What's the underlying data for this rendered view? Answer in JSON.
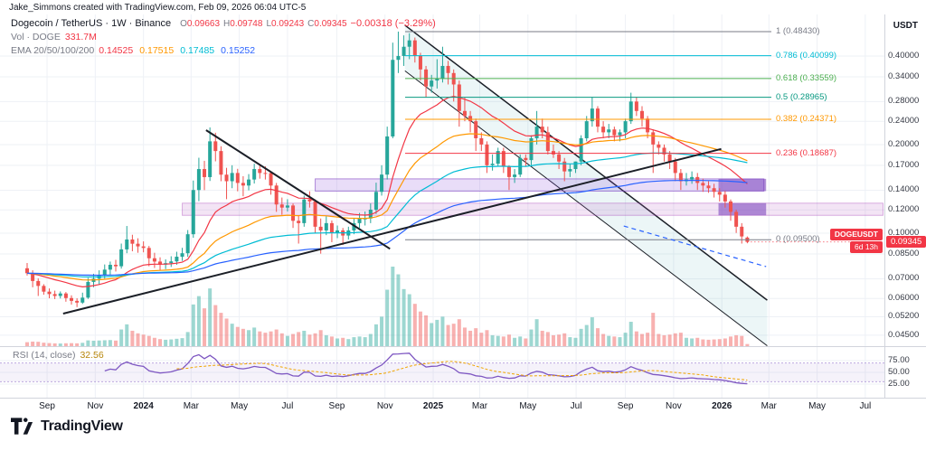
{
  "attribution": "Jake_Simmons created with TradingView.com, Feb 09, 2026 06:04 UTC-5",
  "header": {
    "symbol_line": {
      "title": "Dogecoin / TetherUS · 1W · Binance",
      "ohlc": [
        {
          "k": "O",
          "v": "0.09663"
        },
        {
          "k": "H",
          "v": "0.09748"
        },
        {
          "k": "L",
          "v": "0.09243"
        },
        {
          "k": "C",
          "v": "0.09345"
        }
      ],
      "change": "−0.00318 (−3.29%)",
      "change_color": "#f23645"
    },
    "volume_line": {
      "label": "Vol · DOGE",
      "value": "331.7M",
      "value_color": "#f23645"
    },
    "ema_line": {
      "label": "EMA 20/50/100/200",
      "values": [
        {
          "v": "0.14525",
          "c": "#f23645"
        },
        {
          "v": "0.17515",
          "c": "#ff9800"
        },
        {
          "v": "0.17485",
          "c": "#00bcd4"
        },
        {
          "v": "0.15252",
          "c": "#2962ff"
        }
      ]
    }
  },
  "price_label": {
    "symbol": "DOGEUSDT",
    "countdown": "6d 13h",
    "price": "0.09345",
    "color": "#f23645"
  },
  "footer": {
    "brand": "TradingView"
  },
  "chart_data": {
    "type": "candlestick",
    "symbol": "DOGEUSDT",
    "exchange": "Binance",
    "interval": "1W",
    "quote": "USDT",
    "price_scale": "log",
    "colors": {
      "up": "#26a69a",
      "down": "#ef5350",
      "grid": "#eef1f6",
      "axis_line": "#d1d4dc"
    },
    "y_ticks": [
      "0.40000",
      "0.34000",
      "0.28000",
      "0.24000",
      "0.20000",
      "0.17000",
      "0.14000",
      "0.12000",
      "0.10000",
      "0.08500",
      "0.07000",
      "0.06000",
      "0.05200",
      "0.04500"
    ],
    "x_labels": [
      {
        "t": "Sep",
        "i": 3.6
      },
      {
        "t": "Nov",
        "i": 12.3
      },
      {
        "t": "2024",
        "i": 21.0,
        "b": 1
      },
      {
        "t": "Mar",
        "i": 29.6
      },
      {
        "t": "May",
        "i": 38.3
      },
      {
        "t": "Jul",
        "i": 47.0
      },
      {
        "t": "Sep",
        "i": 55.9
      },
      {
        "t": "Nov",
        "i": 64.6
      },
      {
        "t": "2025",
        "i": 73.3,
        "b": 1
      },
      {
        "t": "Mar",
        "i": 81.7
      },
      {
        "t": "May",
        "i": 90.4
      },
      {
        "t": "Jul",
        "i": 99.1
      },
      {
        "t": "Sep",
        "i": 108.0
      },
      {
        "t": "Nov",
        "i": 116.7
      },
      {
        "t": "2026",
        "i": 125.4,
        "b": 1
      },
      {
        "t": "Mar",
        "i": 133.9
      },
      {
        "t": "May",
        "i": 142.6
      },
      {
        "t": "Jul",
        "i": 151.3
      }
    ],
    "volume_unit": "M",
    "candles": [
      [
        0.076,
        0.0792,
        0.0718,
        0.0731,
        620
      ],
      [
        0.0731,
        0.0748,
        0.0655,
        0.0688,
        710
      ],
      [
        0.0688,
        0.0702,
        0.0612,
        0.0662,
        680
      ],
      [
        0.0662,
        0.0671,
        0.0618,
        0.0633,
        540
      ],
      [
        0.0633,
        0.0649,
        0.0601,
        0.0621,
        480
      ],
      [
        0.0621,
        0.0638,
        0.0597,
        0.0612,
        430
      ],
      [
        0.0612,
        0.0634,
        0.06,
        0.0624,
        410
      ],
      [
        0.0624,
        0.0631,
        0.0585,
        0.0602,
        450
      ],
      [
        0.0602,
        0.0615,
        0.0572,
        0.0589,
        470
      ],
      [
        0.0589,
        0.0601,
        0.0561,
        0.0581,
        440
      ],
      [
        0.0581,
        0.0628,
        0.0575,
        0.0604,
        520
      ],
      [
        0.0604,
        0.0705,
        0.0598,
        0.0683,
        900
      ],
      [
        0.0683,
        0.0728,
        0.0655,
        0.0701,
        850
      ],
      [
        0.0701,
        0.0748,
        0.0668,
        0.0722,
        880
      ],
      [
        0.0722,
        0.0783,
        0.0701,
        0.0752,
        920
      ],
      [
        0.0752,
        0.0801,
        0.0722,
        0.0781,
        950
      ],
      [
        0.0781,
        0.0812,
        0.0741,
        0.0772,
        870
      ],
      [
        0.0772,
        0.0922,
        0.0758,
        0.0881,
        2600
      ],
      [
        0.0881,
        0.1058,
        0.0855,
        0.0952,
        3400
      ],
      [
        0.0952,
        0.0988,
        0.0868,
        0.0921,
        2400
      ],
      [
        0.0921,
        0.0961,
        0.0858,
        0.0902,
        2000
      ],
      [
        0.0902,
        0.0938,
        0.0861,
        0.0891,
        1800
      ],
      [
        0.0891,
        0.0905,
        0.0772,
        0.0822,
        1600
      ],
      [
        0.0822,
        0.0858,
        0.0762,
        0.0801,
        1300
      ],
      [
        0.0801,
        0.0828,
        0.0748,
        0.0782,
        1100
      ],
      [
        0.0782,
        0.0815,
        0.0755,
        0.0791,
        1000
      ],
      [
        0.0791,
        0.0835,
        0.0768,
        0.0802,
        1050
      ],
      [
        0.0802,
        0.0865,
        0.0781,
        0.0832,
        1150
      ],
      [
        0.0832,
        0.0892,
        0.0805,
        0.0855,
        1250
      ],
      [
        0.0855,
        0.1025,
        0.0831,
        0.0992,
        2200
      ],
      [
        0.0992,
        0.151,
        0.0965,
        0.1402,
        6500
      ],
      [
        0.1402,
        0.1805,
        0.1285,
        0.1652,
        7800
      ],
      [
        0.1652,
        0.1762,
        0.1401,
        0.1551,
        5900
      ],
      [
        0.1551,
        0.2288,
        0.1505,
        0.2052,
        9000
      ],
      [
        0.2052,
        0.2195,
        0.1755,
        0.1902,
        6400
      ],
      [
        0.1902,
        0.1975,
        0.1502,
        0.1581,
        5200
      ],
      [
        0.1581,
        0.1668,
        0.1305,
        0.1502,
        4300
      ],
      [
        0.1502,
        0.1702,
        0.1422,
        0.1602,
        3500
      ],
      [
        0.1602,
        0.1655,
        0.1388,
        0.1482,
        3000
      ],
      [
        0.1482,
        0.1562,
        0.1335,
        0.1452,
        2700
      ],
      [
        0.1452,
        0.1588,
        0.1398,
        0.1522,
        2500
      ],
      [
        0.1522,
        0.1722,
        0.1475,
        0.1652,
        2900
      ],
      [
        0.1652,
        0.1708,
        0.1532,
        0.1602,
        2300
      ],
      [
        0.1602,
        0.1688,
        0.1522,
        0.1601,
        2100
      ],
      [
        0.1601,
        0.1622,
        0.1352,
        0.1452,
        2300
      ],
      [
        0.1452,
        0.1482,
        0.1182,
        0.1252,
        2600
      ],
      [
        0.1252,
        0.1322,
        0.1155,
        0.1222,
        2000
      ],
      [
        0.1222,
        0.1305,
        0.1185,
        0.1242,
        1600
      ],
      [
        0.1242,
        0.1262,
        0.1042,
        0.1102,
        1900
      ],
      [
        0.1102,
        0.1152,
        0.0922,
        0.1082,
        2200
      ],
      [
        0.1082,
        0.1342,
        0.1052,
        0.1302,
        2400
      ],
      [
        0.1302,
        0.1388,
        0.1222,
        0.1282,
        1800
      ],
      [
        0.1282,
        0.1302,
        0.1002,
        0.1052,
        2000
      ],
      [
        0.1052,
        0.1122,
        0.0852,
        0.1022,
        2500
      ],
      [
        0.1022,
        0.1142,
        0.0985,
        0.1082,
        1700
      ],
      [
        0.1082,
        0.1105,
        0.0932,
        0.1002,
        1500
      ],
      [
        0.1002,
        0.1062,
        0.0962,
        0.1022,
        1200
      ],
      [
        0.1022,
        0.1042,
        0.0912,
        0.0982,
        1300
      ],
      [
        0.0982,
        0.1052,
        0.0952,
        0.1022,
        1100
      ],
      [
        0.1022,
        0.1122,
        0.0992,
        0.1082,
        1400
      ],
      [
        0.1082,
        0.1172,
        0.1042,
        0.1122,
        1500
      ],
      [
        0.1122,
        0.1185,
        0.1062,
        0.1122,
        1400
      ],
      [
        0.1122,
        0.1262,
        0.1082,
        0.1202,
        1900
      ],
      [
        0.1202,
        0.1485,
        0.1162,
        0.1382,
        3400
      ],
      [
        0.1382,
        0.1702,
        0.1342,
        0.1582,
        4600
      ],
      [
        0.1582,
        0.2302,
        0.1522,
        0.2132,
        8800
      ],
      [
        0.2132,
        0.4442,
        0.2102,
        0.3882,
        12400
      ],
      [
        0.3882,
        0.4843,
        0.3502,
        0.4002,
        11200
      ],
      [
        0.4002,
        0.4702,
        0.3702,
        0.4302,
        8900
      ],
      [
        0.4302,
        0.4782,
        0.3902,
        0.4522,
        8100
      ],
      [
        0.4522,
        0.4622,
        0.3802,
        0.4002,
        6600
      ],
      [
        0.4002,
        0.4102,
        0.3302,
        0.3602,
        5400
      ],
      [
        0.3602,
        0.3702,
        0.2902,
        0.3152,
        4800
      ],
      [
        0.3152,
        0.3452,
        0.3002,
        0.3302,
        3600
      ],
      [
        0.3302,
        0.3902,
        0.3102,
        0.3352,
        4100
      ],
      [
        0.3352,
        0.4302,
        0.3252,
        0.3702,
        4600
      ],
      [
        0.3702,
        0.3852,
        0.3202,
        0.3502,
        3300
      ],
      [
        0.3502,
        0.3602,
        0.2802,
        0.3202,
        3500
      ],
      [
        0.3202,
        0.3302,
        0.2302,
        0.2602,
        4200
      ],
      [
        0.2602,
        0.2902,
        0.2402,
        0.2502,
        2900
      ],
      [
        0.2502,
        0.2602,
        0.2202,
        0.2402,
        2400
      ],
      [
        0.2402,
        0.2452,
        0.1902,
        0.2102,
        2800
      ],
      [
        0.2102,
        0.2202,
        0.1902,
        0.2002,
        2100
      ],
      [
        0.2002,
        0.2052,
        0.1602,
        0.1702,
        2500
      ],
      [
        0.1702,
        0.1852,
        0.1632,
        0.1722,
        1700
      ],
      [
        0.1722,
        0.1952,
        0.1682,
        0.1902,
        1600
      ],
      [
        0.1902,
        0.1952,
        0.1602,
        0.1682,
        1500
      ],
      [
        0.1682,
        0.1702,
        0.1402,
        0.1552,
        1800
      ],
      [
        0.1552,
        0.1652,
        0.1482,
        0.1582,
        1300
      ],
      [
        0.1582,
        0.1852,
        0.1552,
        0.1802,
        1500
      ],
      [
        0.1802,
        0.1852,
        0.1682,
        0.1772,
        1200
      ],
      [
        0.1772,
        0.2152,
        0.1702,
        0.2102,
        2600
      ],
      [
        0.2102,
        0.2602,
        0.2002,
        0.2302,
        4200
      ],
      [
        0.2302,
        0.2452,
        0.2102,
        0.2202,
        2400
      ],
      [
        0.2202,
        0.2302,
        0.1852,
        0.1902,
        2200
      ],
      [
        0.1902,
        0.2002,
        0.1802,
        0.1852,
        1700
      ],
      [
        0.1852,
        0.1902,
        0.1652,
        0.1752,
        1800
      ],
      [
        0.1752,
        0.1802,
        0.1502,
        0.1622,
        2000
      ],
      [
        0.1622,
        0.1722,
        0.1552,
        0.1652,
        1400
      ],
      [
        0.1652,
        0.1752,
        0.1602,
        0.1752,
        1300
      ],
      [
        0.1752,
        0.2152,
        0.1702,
        0.2102,
        2700
      ],
      [
        0.2102,
        0.2502,
        0.2052,
        0.2402,
        3300
      ],
      [
        0.2402,
        0.2902,
        0.2302,
        0.2652,
        4500
      ],
      [
        0.2652,
        0.2702,
        0.2202,
        0.2302,
        2800
      ],
      [
        0.2302,
        0.2402,
        0.2102,
        0.2202,
        1900
      ],
      [
        0.2202,
        0.2352,
        0.2102,
        0.2252,
        1600
      ],
      [
        0.2252,
        0.2302,
        0.2052,
        0.2152,
        1500
      ],
      [
        0.2152,
        0.2252,
        0.2052,
        0.2202,
        1400
      ],
      [
        0.2202,
        0.2452,
        0.2102,
        0.2402,
        2100
      ],
      [
        0.2402,
        0.3002,
        0.2352,
        0.2802,
        3800
      ],
      [
        0.2802,
        0.2902,
        0.2502,
        0.2602,
        2300
      ],
      [
        0.2602,
        0.2702,
        0.2302,
        0.2452,
        1900
      ],
      [
        0.2452,
        0.2502,
        0.2102,
        0.2202,
        2100
      ],
      [
        0.2202,
        0.2252,
        0.1602,
        0.2002,
        5200
      ],
      [
        0.2002,
        0.2052,
        0.1852,
        0.1952,
        1900
      ],
      [
        0.1952,
        0.2002,
        0.1752,
        0.1852,
        1700
      ],
      [
        0.1852,
        0.1902,
        0.1652,
        0.1752,
        1800
      ],
      [
        0.1752,
        0.1802,
        0.1502,
        0.1602,
        2000
      ],
      [
        0.1602,
        0.1652,
        0.1402,
        0.1502,
        2100
      ],
      [
        0.1502,
        0.1602,
        0.1452,
        0.1522,
        1300
      ],
      [
        0.1522,
        0.1622,
        0.1472,
        0.1552,
        1200
      ],
      [
        0.1552,
        0.1602,
        0.1402,
        0.1482,
        1300
      ],
      [
        0.1482,
        0.1532,
        0.1382,
        0.1452,
        1050
      ],
      [
        0.1452,
        0.1502,
        0.1372,
        0.1422,
        1000
      ],
      [
        0.1422,
        0.1472,
        0.1322,
        0.1382,
        1050
      ],
      [
        0.1382,
        0.1422,
        0.1282,
        0.1352,
        1100
      ],
      [
        0.1352,
        0.1392,
        0.1222,
        0.1282,
        1200
      ],
      [
        0.1282,
        0.1302,
        0.1102,
        0.1182,
        1500
      ],
      [
        0.1182,
        0.1202,
        0.1002,
        0.1052,
        1700
      ],
      [
        0.1052,
        0.1082,
        0.0922,
        0.0975,
        1600
      ],
      [
        0.09663,
        0.09748,
        0.09243,
        0.09345,
        331.7
      ]
    ],
    "emas": [
      20,
      50,
      100,
      200
    ],
    "ema_colors": {
      "20": "#f23645",
      "50": "#ff9800",
      "100": "#00bcd4",
      "200": "#2962ff"
    },
    "last_price": 0.09345,
    "fib_levels": [
      {
        "label": "1 (0.48430)",
        "price": 0.4843,
        "color": "#787b86"
      },
      {
        "label": "0.786 (0.40099)",
        "price": 0.40099,
        "color": "#00bcd4"
      },
      {
        "label": "0.618 (0.33559)",
        "price": 0.33559,
        "color": "#4caf50"
      },
      {
        "label": "0.5 (0.28965)",
        "price": 0.28965,
        "color": "#089981"
      },
      {
        "label": "0.382 (0.24371)",
        "price": 0.24371,
        "color": "#ff9800"
      },
      {
        "label": "0.236 (0.18687)",
        "price": 0.18687,
        "color": "#f23645"
      },
      {
        "label": "0 (0.09500)",
        "price": 0.095,
        "color": "#787b86"
      }
    ],
    "rsi": {
      "legend": "RSI (14, close)",
      "value_text": "32.56",
      "value_color": "#b8860b",
      "period": 14,
      "source": "close",
      "upper_band": 70,
      "lower_band": 30,
      "ticks": [
        "75.00",
        "50.00",
        "25.00"
      ],
      "line_color": "#7e57c2",
      "ma_color": "#f0a500",
      "band_fill": "rgba(126,87,194,0.08)"
    },
    "annotations": {
      "trendlines": [
        {
          "x1": 6.5,
          "p1": 0.0533,
          "x2": 125.3,
          "p2": 0.1933,
          "w": 2
        },
        {
          "x1": 32.3,
          "p1": 0.224,
          "x2": 65.5,
          "p2": 0.0885,
          "w": 2
        }
      ],
      "trendline_color": "#1b1f27",
      "channel": {
        "x1": 68.2,
        "p1": 0.509,
        "x2": 133.6,
        "p2": 0.0592,
        "ratio": 0.7,
        "fill": "rgba(42,150,170,0.09)",
        "line_color": "#1b1f27"
      },
      "dashed_support": {
        "x1": 107.7,
        "p1": 0.1058,
        "x2": 133.4,
        "p2": 0.077,
        "color": "#2962ff"
      },
      "boxes": [
        {
          "x1": 52,
          "x2": 133,
          "p1": 0.139,
          "p2": 0.153,
          "fill": "rgba(146,84,222,0.20)",
          "stroke": "rgba(116,52,190,0.55)"
        },
        {
          "x1": 28,
          "x2": 154.5,
          "p1": 0.115,
          "p2": 0.1265,
          "fill": "rgba(186,104,200,0.18)",
          "stroke": "rgba(156,39,176,0.35)"
        },
        {
          "x1": 124.8,
          "x2": 133.4,
          "p1": 0.139,
          "p2": 0.153,
          "fill": "rgba(103,42,180,0.50)"
        },
        {
          "x1": 124.8,
          "x2": 133.4,
          "p1": 0.115,
          "p2": 0.1265,
          "fill": "rgba(103,42,180,0.50)"
        }
      ]
    }
  }
}
